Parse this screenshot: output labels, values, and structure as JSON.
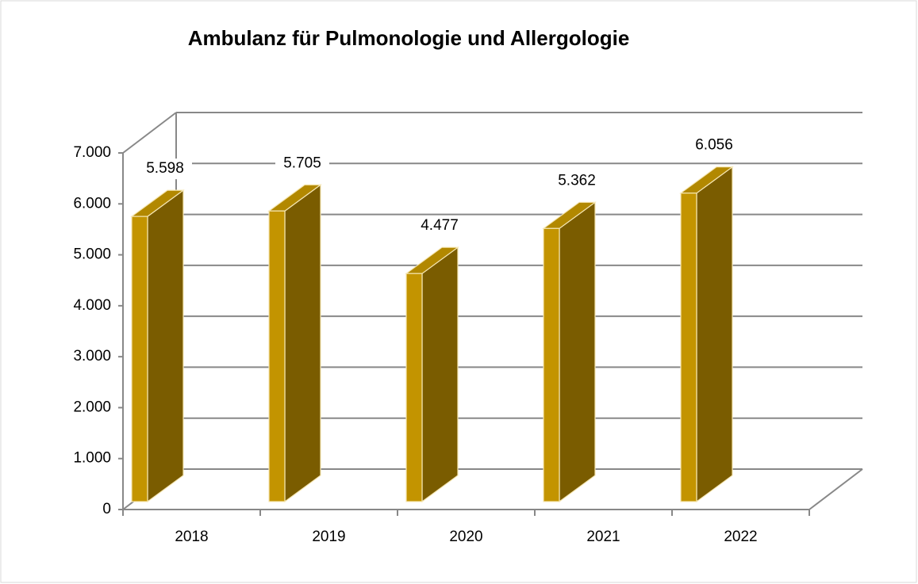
{
  "chart_data": {
    "type": "bar3d",
    "title": "Ambulanz für Pulmonologie und Allergologie",
    "categories": [
      "2018",
      "2019",
      "2020",
      "2021",
      "2022"
    ],
    "values": [
      5598,
      5705,
      4477,
      5362,
      6056
    ],
    "value_labels": [
      "5.598",
      "5.705",
      "4.477",
      "5.362",
      "6.056"
    ],
    "color": "#c39400",
    "side_color": "#7a5c00",
    "ylim": [
      0,
      7000
    ],
    "yticks": [
      0,
      {
        "value": 1000,
        "label": "1.000"
      },
      {
        "value": 2000,
        "label": "2.000"
      },
      {
        "value": 3000,
        "label": "3.000"
      },
      {
        "value": 4000,
        "label": "4.000"
      },
      {
        "value": 5000,
        "label": "5.000"
      },
      {
        "value": 6000,
        "label": "6.000"
      },
      {
        "value": 7000,
        "label": "7.000"
      }
    ],
    "grid": true
  }
}
